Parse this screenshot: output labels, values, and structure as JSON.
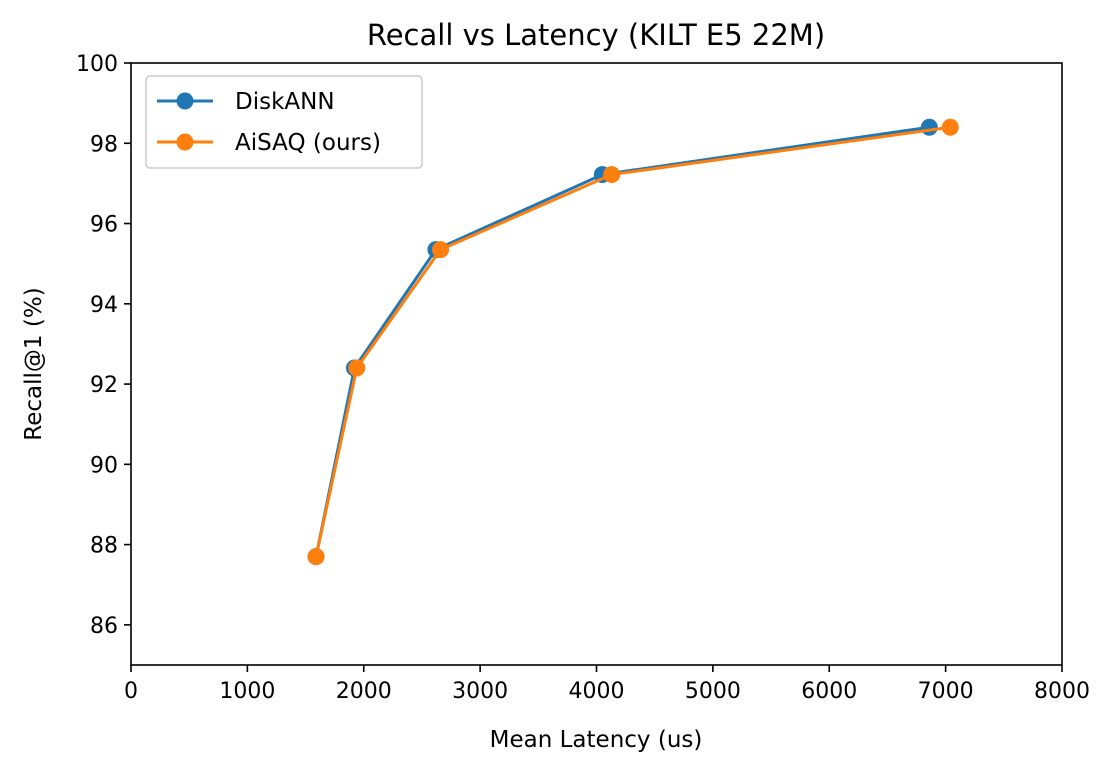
{
  "chart_data": {
    "type": "line",
    "title": "Recall vs Latency (KILT E5 22M)",
    "xlabel": "Mean Latency (us)",
    "ylabel": "Recall@1 (%)",
    "xlim": [
      0,
      8000
    ],
    "ylim": [
      85,
      100
    ],
    "xticks": [
      "0",
      "1000",
      "2000",
      "3000",
      "4000",
      "5000",
      "6000",
      "7000",
      "8000"
    ],
    "yticks": [
      "86",
      "88",
      "90",
      "92",
      "94",
      "96",
      "98",
      "100"
    ],
    "grid": false,
    "legend_position": "upper-left",
    "series": [
      {
        "name": "DiskANN",
        "color": "#1f77b4",
        "marker": "circle",
        "x": [
          1590,
          1920,
          2620,
          4050,
          6860
        ],
        "y": [
          87.7,
          92.4,
          95.35,
          97.22,
          98.4
        ]
      },
      {
        "name": "AiSAQ (ours)",
        "color": "#ff7f0e",
        "marker": "circle",
        "x": [
          1590,
          1940,
          2660,
          4130,
          7040
        ],
        "y": [
          87.7,
          92.4,
          95.35,
          97.22,
          98.4
        ]
      }
    ]
  }
}
